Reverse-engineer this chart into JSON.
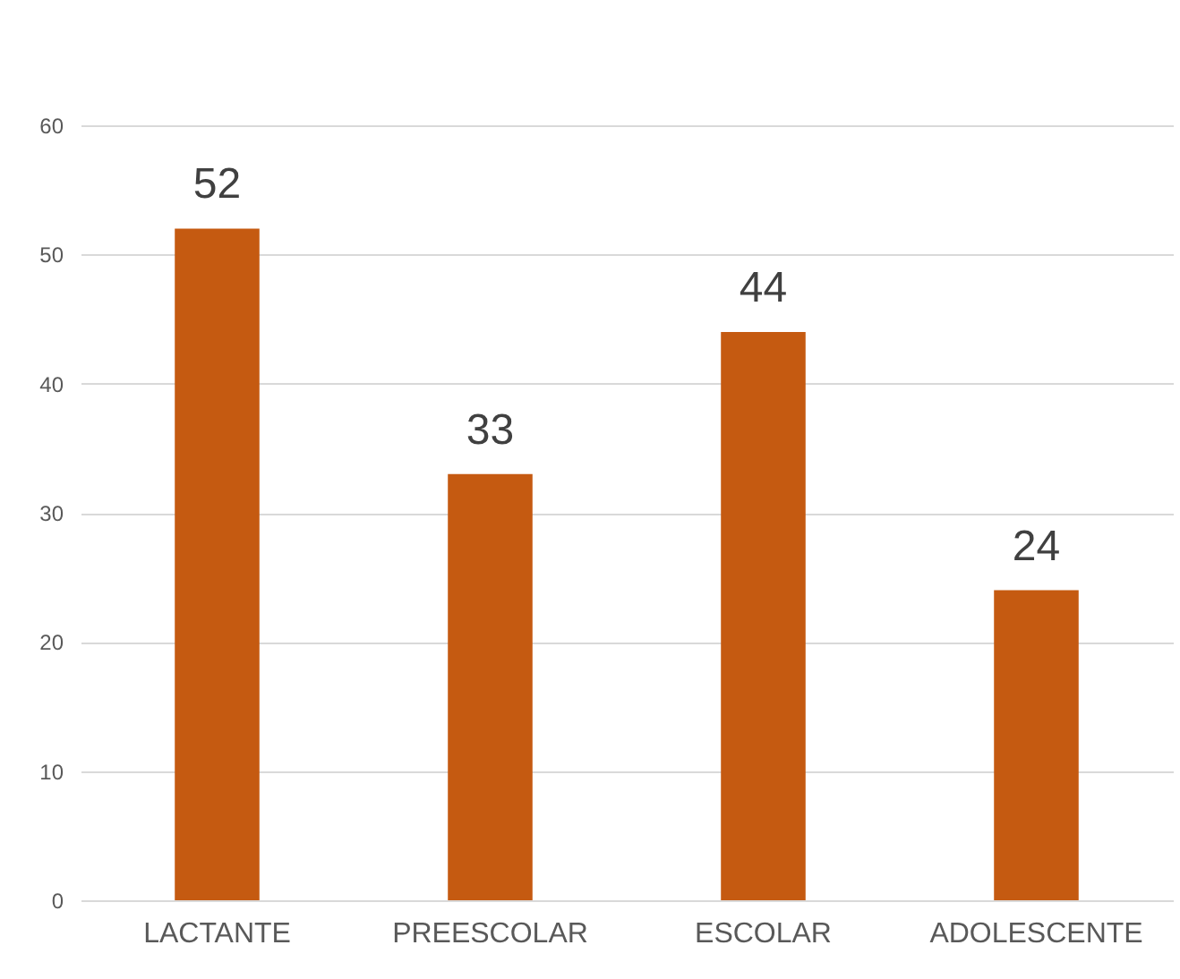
{
  "chart_data": {
    "type": "bar",
    "categories": [
      "LACTANTE",
      "PREESCOLAR",
      "ESCOLAR",
      "ADOLESCENTE"
    ],
    "values": [
      52,
      33,
      44,
      24
    ],
    "color": "#c55a11",
    "ylim": [
      0,
      60
    ],
    "yticks": [
      0,
      10,
      20,
      30,
      40,
      50,
      60
    ],
    "grid": "y",
    "data_labels": true
  }
}
